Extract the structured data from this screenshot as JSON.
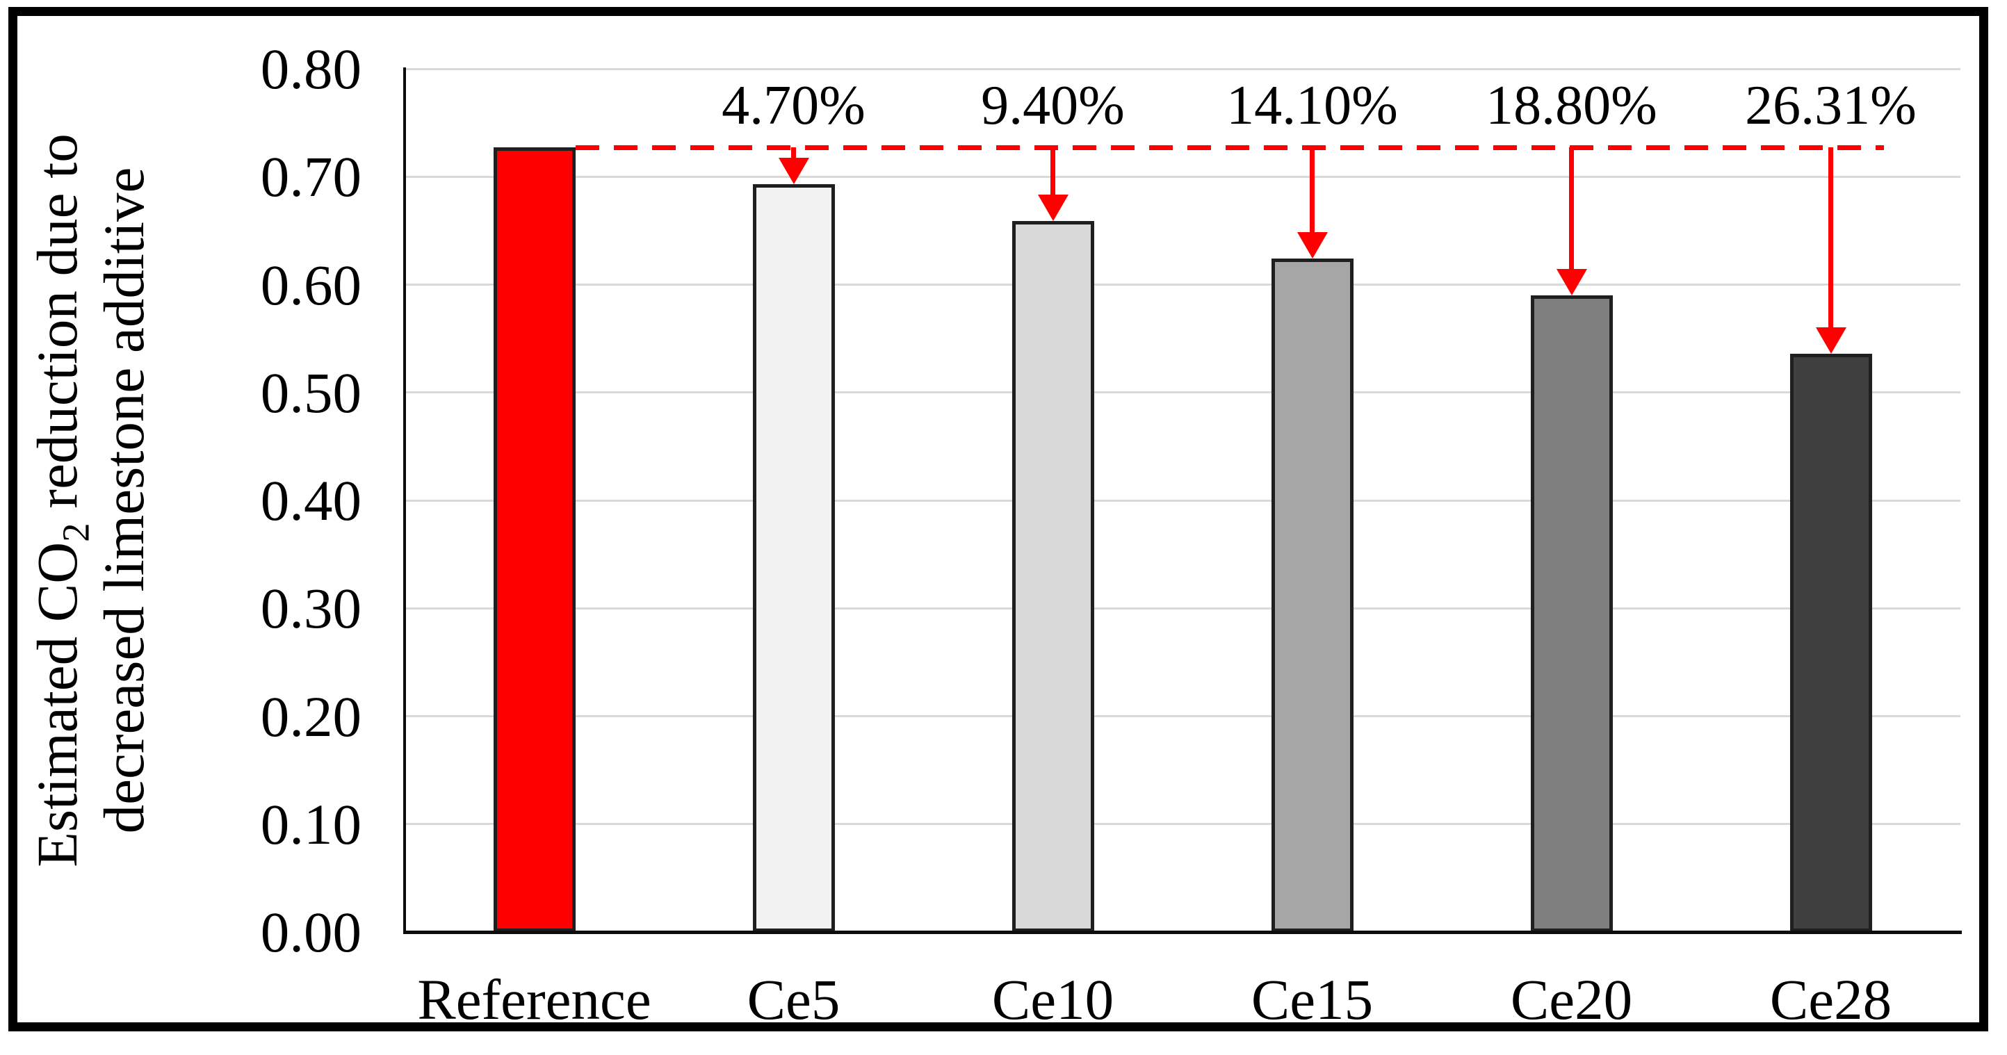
{
  "figure": {
    "background": "#ffffff",
    "border_color": "#000000",
    "accent_red": "#ff0000"
  },
  "chart_data": {
    "type": "bar",
    "title": "",
    "ylabel": {
      "line1_pre": "Estimated CO",
      "line1_sub": "2",
      "line1_post": " reduction due to",
      "line2": "decreased limestone additive"
    },
    "xlabel": "",
    "categories": [
      "Reference",
      "Ce5",
      "Ce10",
      "Ce15",
      "Ce20",
      "Ce28"
    ],
    "values": [
      0.727,
      0.693,
      0.659,
      0.624,
      0.59,
      0.536
    ],
    "bar_fill_colors": [
      "#ff0000",
      "#f2f2f2",
      "#d9d9d9",
      "#a6a6a6",
      "#7f7f7f",
      "#404040"
    ],
    "bar_border_color": "#1f1f1f",
    "ylim": [
      0.0,
      0.8
    ],
    "ytick_step": 0.1,
    "ytick_labels": [
      "0.00",
      "0.10",
      "0.20",
      "0.30",
      "0.40",
      "0.50",
      "0.60",
      "0.70",
      "0.80"
    ],
    "grid": true,
    "gridline_color": "#d9d9d9",
    "legend": null,
    "reference_line": {
      "style": "dashed",
      "color": "#ff0000",
      "from_category": "Reference",
      "at_value": 0.727
    },
    "annotations": [
      {
        "category": "Ce5",
        "label": "4.70%",
        "reduction_vs_reference": 4.7
      },
      {
        "category": "Ce10",
        "label": "9.40%",
        "reduction_vs_reference": 9.4
      },
      {
        "category": "Ce15",
        "label": "14.10%",
        "reduction_vs_reference": 14.1
      },
      {
        "category": "Ce20",
        "label": "18.80%",
        "reduction_vs_reference": 18.8
      },
      {
        "category": "Ce28",
        "label": "26.31%",
        "reduction_vs_reference": 26.31
      }
    ]
  }
}
